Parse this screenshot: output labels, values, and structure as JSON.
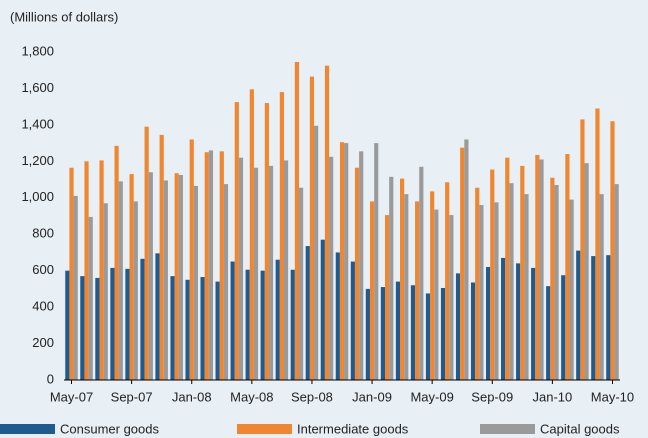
{
  "chart_data": {
    "type": "bar",
    "y_axis_label": "(Millions of dollars)",
    "categories": [
      "May-07",
      null,
      null,
      null,
      "Sep-07",
      null,
      null,
      null,
      "Jan-08",
      null,
      null,
      null,
      "May-08",
      null,
      null,
      null,
      "Sep-08",
      null,
      null,
      null,
      "Jan-09",
      null,
      null,
      null,
      "May-09",
      null,
      null,
      null,
      "Sep-09",
      null,
      null,
      null,
      "Jan-10",
      null,
      null,
      null,
      "May-10"
    ],
    "series": [
      {
        "name": "Consumer goods",
        "color": "#1f5b8e",
        "values": [
          600,
          570,
          560,
          615,
          610,
          665,
          695,
          570,
          550,
          565,
          540,
          650,
          605,
          600,
          660,
          605,
          735,
          770,
          700,
          650,
          500,
          510,
          540,
          520,
          475,
          505,
          585,
          535,
          620,
          670,
          640,
          615,
          515,
          575,
          710,
          680,
          685
        ]
      },
      {
        "name": "Intermediate goods",
        "color": "#f0862f",
        "values": [
          1165,
          1200,
          1205,
          1285,
          1130,
          1390,
          1345,
          1135,
          1320,
          1250,
          1255,
          1525,
          1595,
          1520,
          1580,
          1745,
          1665,
          1725,
          1305,
          1165,
          980,
          905,
          1105,
          980,
          1035,
          1085,
          1275,
          1055,
          1155,
          1220,
          1175,
          1235,
          1110,
          1240,
          1430,
          1490,
          1420
        ]
      },
      {
        "name": "Capital goods",
        "color": "#9a9a9a",
        "values": [
          1010,
          895,
          970,
          1090,
          980,
          1140,
          1095,
          1125,
          1065,
          1260,
          1075,
          1220,
          1165,
          1175,
          1205,
          1055,
          1395,
          1225,
          1300,
          1255,
          1300,
          1115,
          1020,
          1170,
          935,
          905,
          1320,
          960,
          975,
          1080,
          1020,
          1210,
          1070,
          990,
          1190,
          1020,
          1075
        ]
      }
    ],
    "ylim": [
      0,
      1800
    ],
    "yticks": [
      0,
      200,
      400,
      600,
      800,
      {
        "value": 1000,
        "label": "1,000"
      },
      {
        "value": 1200,
        "label": "1,200"
      },
      {
        "value": 1400,
        "label": "1,400"
      },
      {
        "value": 1600,
        "label": "1,600"
      },
      {
        "value": 1800,
        "label": "1,800"
      }
    ]
  }
}
